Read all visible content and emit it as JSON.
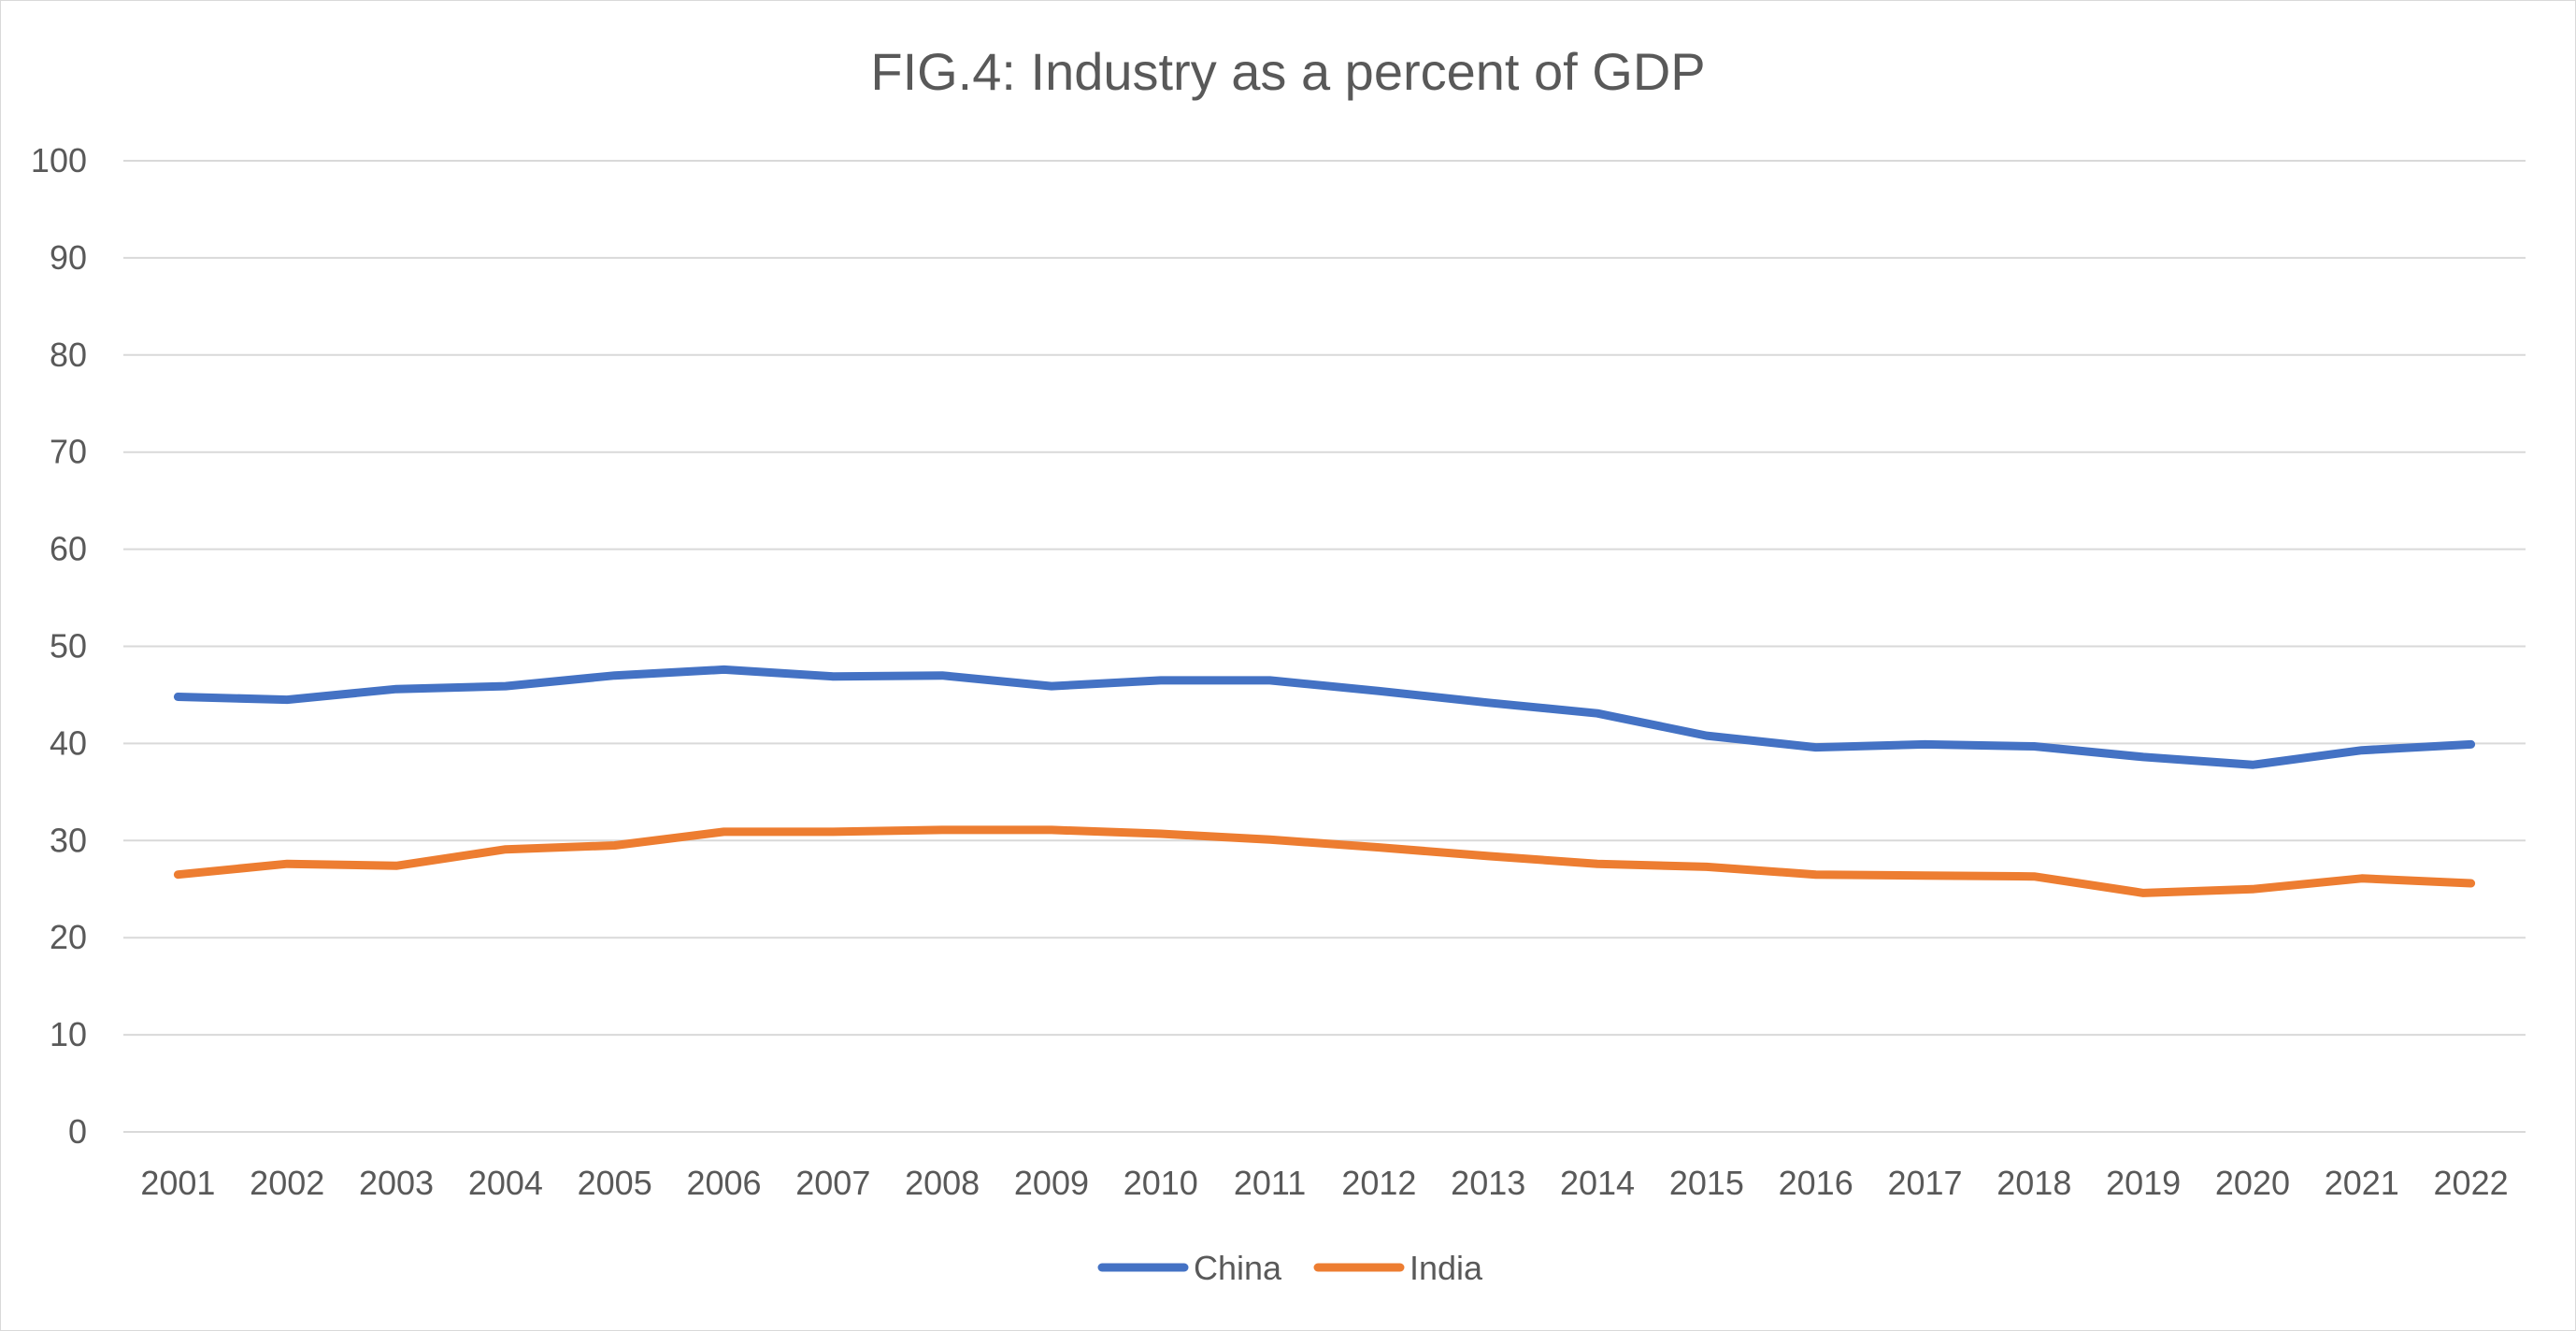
{
  "chart_data": {
    "type": "line",
    "title": "FIG.4: Industry as a percent of GDP",
    "xlabel": "",
    "ylabel": "",
    "categories": [
      "2001",
      "2002",
      "2003",
      "2004",
      "2005",
      "2006",
      "2007",
      "2008",
      "2009",
      "2010",
      "2011",
      "2012",
      "2013",
      "2014",
      "2015",
      "2016",
      "2017",
      "2018",
      "2019",
      "2020",
      "2021",
      "2022"
    ],
    "ylim": [
      0,
      100
    ],
    "yticks": [
      0,
      10,
      20,
      30,
      40,
      50,
      60,
      70,
      80,
      90,
      100
    ],
    "grid": true,
    "legend_position": "bottom",
    "series": [
      {
        "name": "China",
        "color": "#4472C4",
        "values": [
          44.8,
          44.5,
          45.6,
          45.9,
          47.0,
          47.6,
          46.9,
          47.0,
          45.9,
          46.5,
          46.5,
          45.4,
          44.2,
          43.1,
          40.8,
          39.6,
          39.9,
          39.7,
          38.6,
          37.8,
          39.3,
          39.9
        ]
      },
      {
        "name": "India",
        "color": "#ED7D31",
        "values": [
          26.5,
          27.6,
          27.4,
          29.1,
          29.5,
          30.9,
          30.9,
          31.1,
          31.1,
          30.7,
          30.1,
          29.3,
          28.4,
          27.6,
          27.3,
          26.5,
          26.4,
          26.3,
          24.6,
          25.0,
          26.1,
          25.6
        ]
      }
    ]
  }
}
